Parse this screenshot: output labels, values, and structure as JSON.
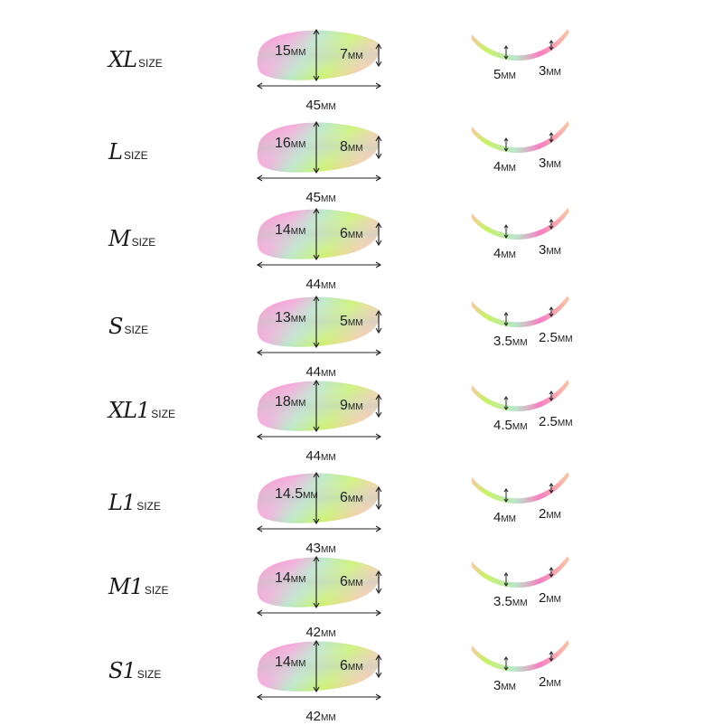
{
  "unit": "MM",
  "size_word": "SIZE",
  "rows": [
    {
      "letter": "XL",
      "height": "15",
      "edge": "7",
      "length": "45",
      "curve_center": "5",
      "curve_edge": "3"
    },
    {
      "letter": "L",
      "height": "16",
      "edge": "8",
      "length": "45",
      "curve_center": "4",
      "curve_edge": "3"
    },
    {
      "letter": "M",
      "height": "14",
      "edge": "6",
      "length": "44",
      "curve_center": "4",
      "curve_edge": "3"
    },
    {
      "letter": "S",
      "height": "13",
      "edge": "5",
      "length": "44",
      "curve_center": "3.5",
      "curve_edge": "2.5"
    },
    {
      "letter": "XL1",
      "height": "18",
      "edge": "9",
      "length": "44",
      "curve_center": "4.5",
      "curve_edge": "2.5"
    },
    {
      "letter": "L1",
      "height": "14.5",
      "edge": "6",
      "length": "43",
      "curve_center": "4",
      "curve_edge": "2"
    },
    {
      "letter": "M1",
      "height": "14",
      "edge": "6",
      "length": "42",
      "curve_center": "3.5",
      "curve_edge": "2"
    },
    {
      "letter": "S1",
      "height": "14",
      "edge": "6",
      "length": "42",
      "curve_center": "3",
      "curve_edge": "2"
    }
  ],
  "colors": {
    "pink": "#f77fc2",
    "green": "#c9f26a",
    "mint": "#b9e6c8",
    "grey": "#c9d6d2",
    "peach": "#f7c8a4"
  }
}
